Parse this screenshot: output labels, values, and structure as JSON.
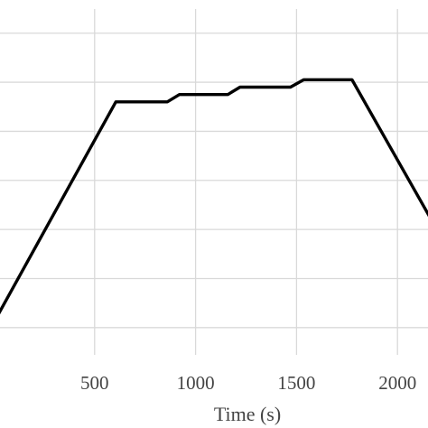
{
  "chart_data": {
    "type": "line",
    "title": "",
    "xlabel": "Time (s)",
    "ylabel": "",
    "xlim": [
      0,
      2250
    ],
    "ylim": [
      0,
      700
    ],
    "x_ticks": [
      500,
      1000,
      1500,
      2000
    ],
    "x_tick_labels": [
      "500",
      "1000",
      "1500",
      "2000"
    ],
    "y_gridlines": [
      50,
      150,
      250,
      350,
      450,
      550,
      650
    ],
    "grid": true,
    "legend": "none",
    "line_color": "#000000",
    "series": [
      {
        "x": [
          0,
          605,
          860,
          920,
          1160,
          1220,
          1470,
          1535,
          1775,
          2250
        ],
        "y": [
          60,
          510,
          510,
          525,
          525,
          540,
          540,
          555,
          555,
          210
        ]
      }
    ]
  }
}
